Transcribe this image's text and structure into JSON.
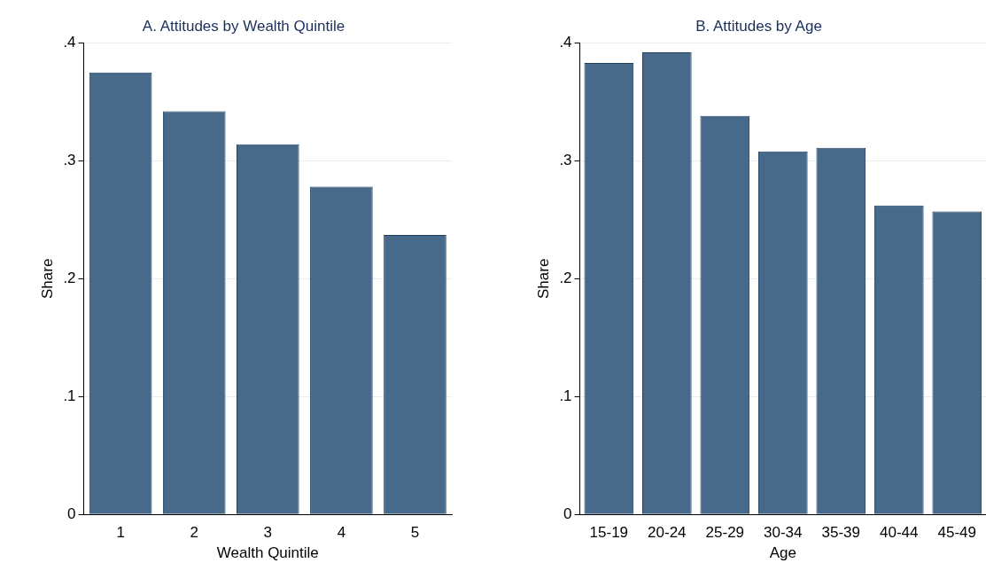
{
  "chart_data": [
    {
      "type": "bar",
      "title": "A. Attitudes by Wealth Quintile",
      "xlabel": "Wealth Quintile",
      "ylabel": "Share",
      "categories": [
        "1",
        "2",
        "3",
        "4",
        "5"
      ],
      "values": [
        0.375,
        0.342,
        0.314,
        0.278,
        0.237
      ],
      "color": "#476a8a",
      "ylim": [
        0,
        0.4
      ],
      "yticks": [
        {
          "value": 0,
          "label": "0"
        },
        {
          "value": 0.1,
          "label": ".1"
        },
        {
          "value": 0.2,
          "label": ".2"
        },
        {
          "value": 0.3,
          "label": ".3"
        },
        {
          "value": 0.4,
          "label": ".4"
        }
      ],
      "grid": "y",
      "legend": false
    },
    {
      "type": "bar",
      "title": "B. Attitudes by Age",
      "xlabel": "Age",
      "ylabel": "Share",
      "categories": [
        "15-19",
        "20-24",
        "25-29",
        "30-34",
        "35-39",
        "40-44",
        "45-49"
      ],
      "values": [
        0.383,
        0.392,
        0.338,
        0.308,
        0.311,
        0.262,
        0.257
      ],
      "color": "#476a8a",
      "ylim": [
        0,
        0.4
      ],
      "yticks": [
        {
          "value": 0,
          "label": "0"
        },
        {
          "value": 0.1,
          "label": ".1"
        },
        {
          "value": 0.2,
          "label": ".2"
        },
        {
          "value": 0.3,
          "label": ".3"
        },
        {
          "value": 0.4,
          "label": ".4"
        }
      ],
      "grid": "y",
      "legend": false
    }
  ]
}
